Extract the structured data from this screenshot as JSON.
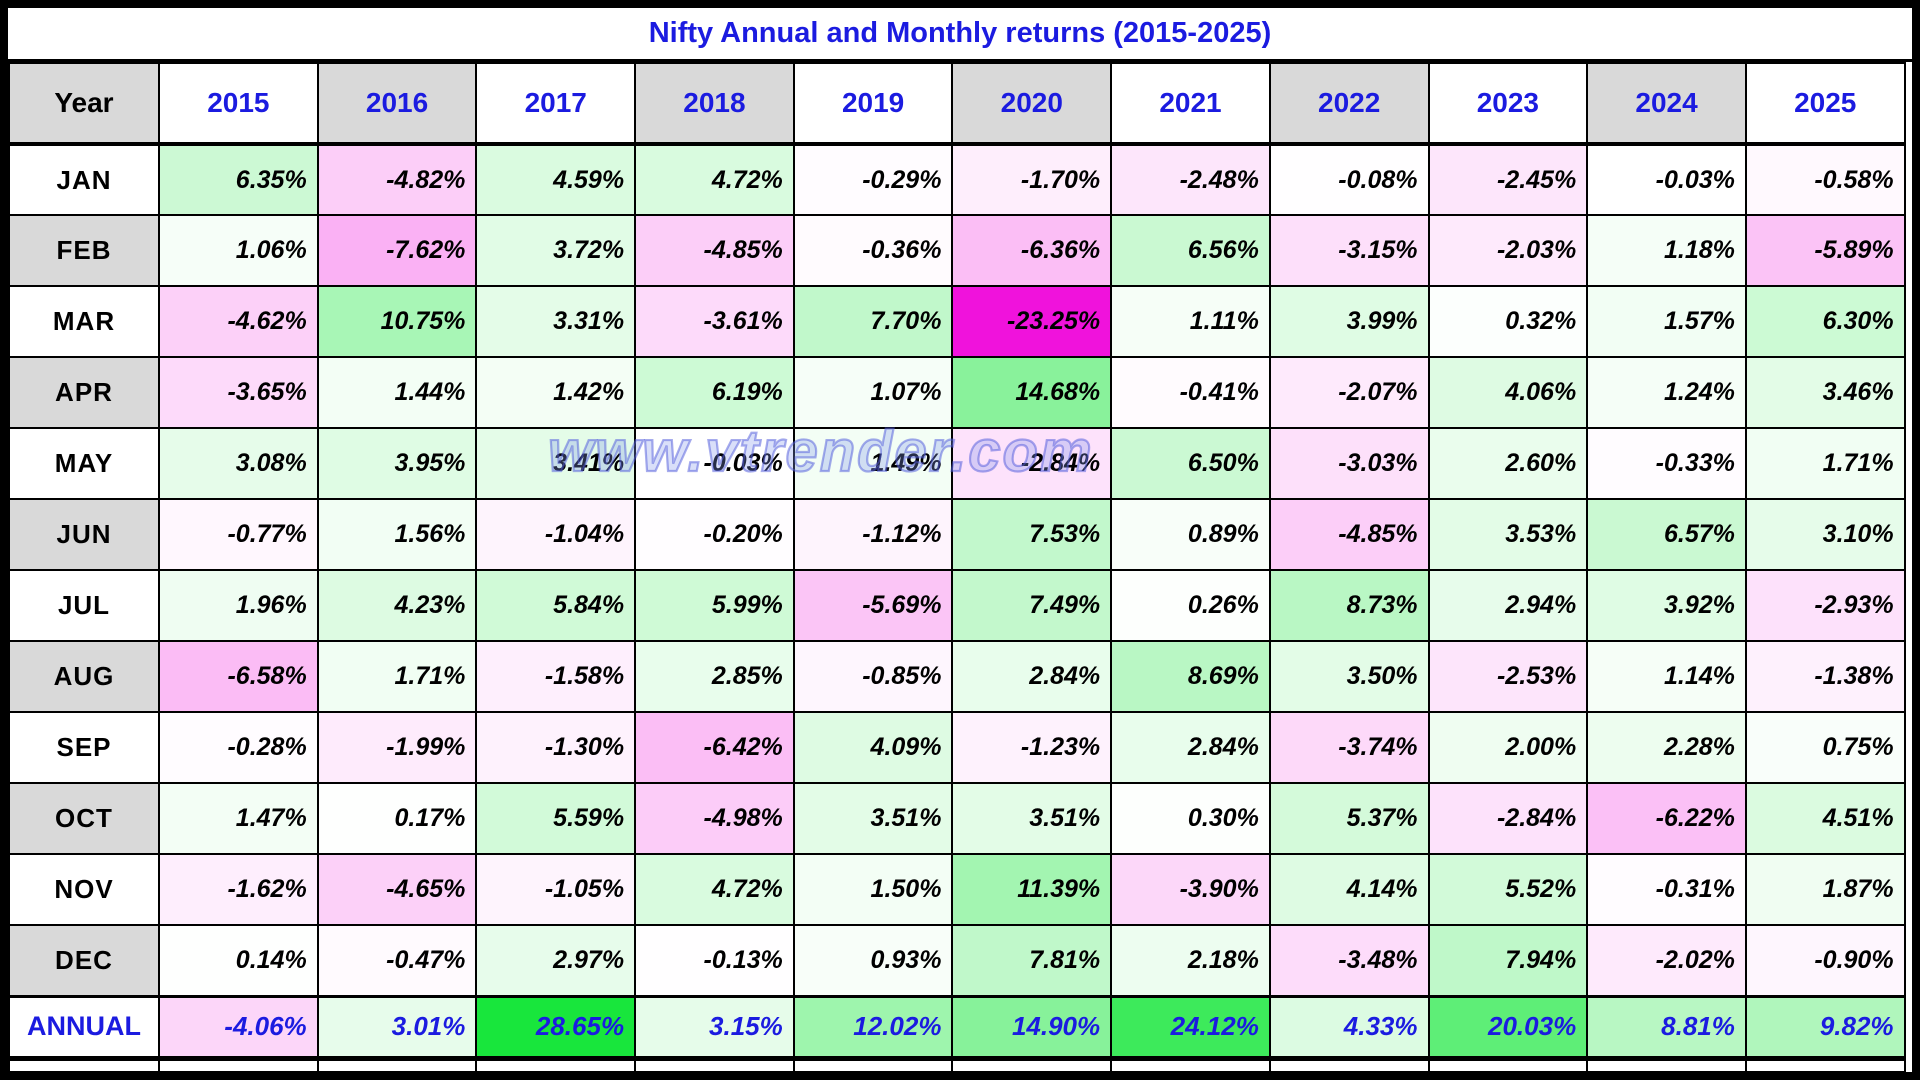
{
  "watermark": "www.vtrender.com",
  "colors": {
    "accent_blue": "#1B1BE0",
    "header_gray": "#D9D9D9",
    "grid_black": "#000000",
    "watermark_blue": "#6E7EDC"
  },
  "chart_data": {
    "type": "heatmap",
    "title": "Nifty Annual and Monthly returns (2015-2025)",
    "row_header": "Year",
    "columns": [
      "2015",
      "2016",
      "2017",
      "2018",
      "2019",
      "2020",
      "2021",
      "2022",
      "2023",
      "2024",
      "2025"
    ],
    "rows": [
      "JAN",
      "FEB",
      "MAR",
      "APR",
      "MAY",
      "JUN",
      "JUL",
      "AUG",
      "SEP",
      "OCT",
      "NOV",
      "DEC",
      "ANNUAL"
    ],
    "value_unit": "%",
    "values_pct": [
      [
        6.35,
        -4.82,
        4.59,
        4.72,
        -0.29,
        -1.7,
        -2.48,
        -0.08,
        -2.45,
        -0.03,
        -0.58
      ],
      [
        1.06,
        -7.62,
        3.72,
        -4.85,
        -0.36,
        -6.36,
        6.56,
        -3.15,
        -2.03,
        1.18,
        -5.89
      ],
      [
        -4.62,
        10.75,
        3.31,
        -3.61,
        7.7,
        -23.25,
        1.11,
        3.99,
        0.32,
        1.57,
        6.3
      ],
      [
        -3.65,
        1.44,
        1.42,
        6.19,
        1.07,
        14.68,
        -0.41,
        -2.07,
        4.06,
        1.24,
        3.46
      ],
      [
        3.08,
        3.95,
        3.41,
        -0.03,
        1.49,
        -2.84,
        6.5,
        -3.03,
        2.6,
        -0.33,
        1.71
      ],
      [
        -0.77,
        1.56,
        -1.04,
        -0.2,
        -1.12,
        7.53,
        0.89,
        -4.85,
        3.53,
        6.57,
        3.1
      ],
      [
        1.96,
        4.23,
        5.84,
        5.99,
        -5.69,
        7.49,
        0.26,
        8.73,
        2.94,
        3.92,
        -2.93
      ],
      [
        -6.58,
        1.71,
        -1.58,
        2.85,
        -0.85,
        2.84,
        8.69,
        3.5,
        -2.53,
        1.14,
        -1.38
      ],
      [
        -0.28,
        -1.99,
        -1.3,
        -6.42,
        4.09,
        -1.23,
        2.84,
        -3.74,
        2.0,
        2.28,
        0.75
      ],
      [
        1.47,
        0.17,
        5.59,
        -4.98,
        3.51,
        3.51,
        0.3,
        5.37,
        -2.84,
        -6.22,
        4.51
      ],
      [
        -1.62,
        -4.65,
        -1.05,
        4.72,
        1.5,
        11.39,
        -3.9,
        4.14,
        5.52,
        -0.31,
        1.87
      ],
      [
        0.14,
        -0.47,
        2.97,
        -0.13,
        0.93,
        7.81,
        2.18,
        -3.48,
        7.94,
        -2.02,
        -0.9
      ],
      [
        -4.06,
        3.01,
        28.65,
        3.15,
        12.02,
        14.9,
        24.12,
        4.33,
        20.03,
        8.81,
        9.82
      ]
    ],
    "color_scale": {
      "min_value": -23.25,
      "mid_value": 0,
      "max_value": 28.65,
      "min_color": "#F012DC",
      "mid_color": "#FFFFFF",
      "max_color": "#18E63C"
    },
    "legend": "green = positive monthly/annual return, magenta = negative; intensity proportional to magnitude",
    "grid": true
  }
}
